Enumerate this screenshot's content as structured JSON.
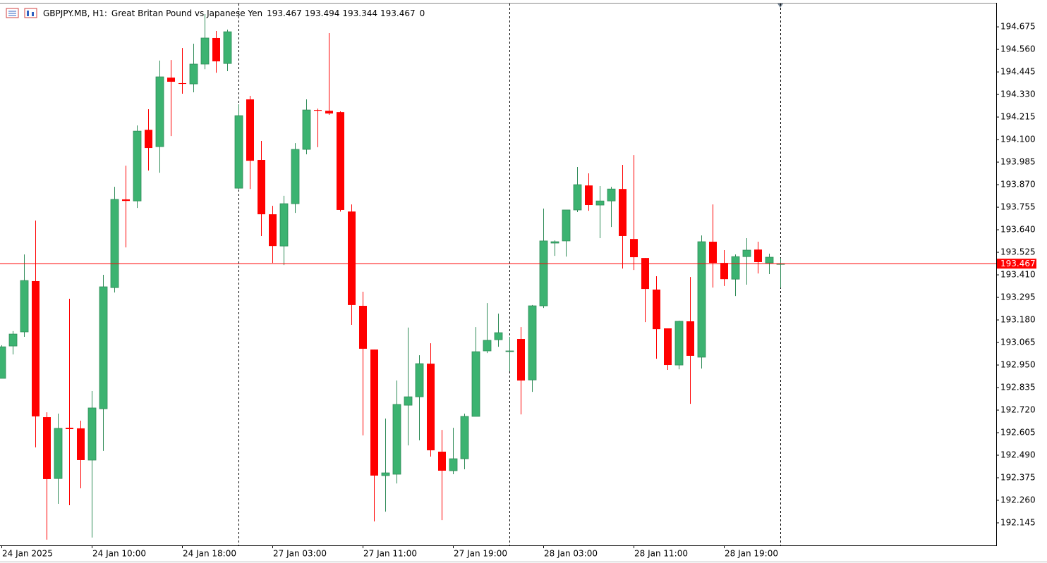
{
  "chart_data": {
    "type": "candlestick",
    "title": "GBPJPY.MB, H1:",
    "subtitle": "Great Britan Pound vs Japanese Yen",
    "spread": 0,
    "up_color": "#3cb371",
    "down_color": "#ff0000",
    "price_line_color": "#ff0000",
    "categories": [
      "24 Jan 2025",
      null,
      null,
      null,
      null,
      null,
      null,
      null,
      "24 Jan 10:00",
      null,
      null,
      null,
      null,
      null,
      null,
      null,
      "24 Jan 18:00",
      null,
      null,
      null,
      null,
      null,
      null,
      null,
      "27 Jan 03:00",
      null,
      null,
      null,
      null,
      null,
      null,
      null,
      "27 Jan 11:00",
      null,
      null,
      null,
      null,
      null,
      null,
      null,
      "27 Jan 19:00",
      null,
      null,
      null,
      null,
      null,
      null,
      null,
      "28 Jan 03:00",
      null,
      null,
      null,
      null,
      null,
      null,
      null,
      "28 Jan 11:00",
      null,
      null,
      null,
      null,
      null,
      null,
      null,
      "28 Jan 19:00",
      null,
      null,
      null,
      null,
      null
    ],
    "open": [
      192.882,
      193.047,
      193.119,
      193.378,
      192.684,
      192.371,
      192.63,
      192.627,
      192.465,
      192.727,
      193.345,
      193.795,
      193.787,
      194.15,
      194.064,
      194.416,
      194.388,
      194.384,
      194.485,
      194.618,
      194.488,
      193.852,
      194.305,
      193.996,
      193.719,
      193.557,
      193.773,
      194.05,
      194.251,
      194.247,
      194.24,
      193.733,
      193.252,
      193.029,
      192.386,
      192.393,
      192.745,
      192.788,
      192.957,
      192.508,
      192.411,
      192.472,
      192.688,
      193.022,
      193.079,
      193.022,
      193.083,
      192.874,
      193.252,
      193.572,
      193.583,
      193.741,
      193.866,
      193.766,
      193.787,
      193.848,
      193.593,
      193.496,
      193.335,
      193.137,
      192.95,
      193.173,
      192.99,
      193.579,
      193.471,
      193.388,
      193.503,
      193.539,
      193.471,
      193.467
    ],
    "high": [
      193.051,
      193.123,
      193.514,
      193.687,
      192.709,
      192.702,
      193.288,
      192.666,
      192.817,
      193.41,
      193.859,
      193.967,
      194.172,
      194.255,
      194.503,
      194.506,
      194.567,
      194.589,
      194.74,
      194.654,
      194.661,
      194.28,
      194.323,
      194.093,
      193.762,
      193.813,
      194.082,
      194.305,
      194.258,
      194.643,
      194.244,
      193.769,
      193.324,
      193.029,
      192.677,
      192.871,
      193.141,
      193.0,
      193.061,
      192.619,
      192.63,
      192.702,
      193.144,
      193.266,
      193.212,
      193.094,
      193.144,
      193.256,
      193.748,
      193.586,
      193.741,
      193.96,
      193.928,
      193.863,
      193.859,
      193.971,
      194.021,
      193.496,
      193.403,
      193.137,
      193.176,
      193.399,
      193.611,
      193.769,
      193.536,
      193.514,
      193.597,
      193.579,
      193.518,
      193.494
    ],
    "low": [
      192.882,
      193.004,
      193.094,
      192.53,
      192.059,
      192.242,
      192.235,
      192.321,
      192.07,
      192.512,
      193.32,
      193.55,
      193.751,
      193.942,
      193.931,
      194.118,
      194.334,
      194.341,
      194.459,
      194.441,
      194.449,
      193.848,
      193.848,
      193.608,
      193.471,
      193.46,
      193.726,
      194.025,
      194.061,
      194.226,
      193.733,
      193.155,
      192.591,
      192.152,
      192.202,
      192.346,
      192.54,
      192.566,
      192.483,
      192.159,
      192.393,
      192.418,
      192.688,
      193.011,
      193.043,
      192.918,
      192.698,
      192.813,
      193.241,
      193.507,
      193.503,
      193.73,
      193.737,
      193.597,
      193.654,
      193.442,
      193.435,
      193.169,
      192.982,
      192.925,
      192.928,
      192.752,
      192.932,
      193.345,
      193.353,
      193.302,
      193.36,
      193.417,
      193.414,
      193.344
    ],
    "close": [
      193.043,
      193.108,
      193.381,
      192.688,
      192.368,
      192.627,
      192.623,
      192.465,
      192.731,
      193.349,
      193.795,
      193.787,
      194.143,
      194.057,
      194.42,
      194.395,
      194.384,
      194.485,
      194.618,
      194.499,
      194.65,
      194.222,
      193.992,
      193.719,
      193.557,
      193.773,
      194.05,
      194.251,
      194.247,
      194.233,
      193.741,
      193.256,
      193.033,
      192.386,
      192.4,
      192.749,
      192.788,
      192.957,
      192.515,
      192.411,
      192.472,
      192.688,
      193.018,
      193.076,
      193.115,
      193.022,
      192.871,
      193.252,
      193.583,
      193.579,
      193.741,
      193.87,
      193.766,
      193.787,
      193.848,
      193.608,
      193.5,
      193.338,
      193.133,
      192.95,
      193.173,
      192.997,
      193.579,
      193.471,
      193.388,
      193.503,
      193.536,
      193.475,
      193.5,
      193.467
    ],
    "ylim": [
      192.03,
      194.794
    ],
    "yticks": [
      194.675,
      {
        "value": 194.56,
        "label": "194.560"
      },
      194.445,
      {
        "value": 194.33,
        "label": "194.330"
      },
      194.215,
      {
        "value": 194.1,
        "label": "194.100"
      },
      193.985,
      {
        "value": 193.87,
        "label": "193.870"
      },
      193.755,
      {
        "value": 193.64,
        "label": "193.640"
      },
      193.525,
      {
        "value": 193.41,
        "label": "193.410"
      },
      193.295,
      {
        "value": 193.18,
        "label": "193.180"
      },
      193.065,
      {
        "value": 192.95,
        "label": "192.950"
      },
      192.835,
      {
        "value": 192.72,
        "label": "192.720"
      },
      192.605,
      {
        "value": 192.49,
        "label": "192.490"
      },
      192.375,
      {
        "value": 192.26,
        "label": "192.260"
      },
      192.145
    ]
  }
}
